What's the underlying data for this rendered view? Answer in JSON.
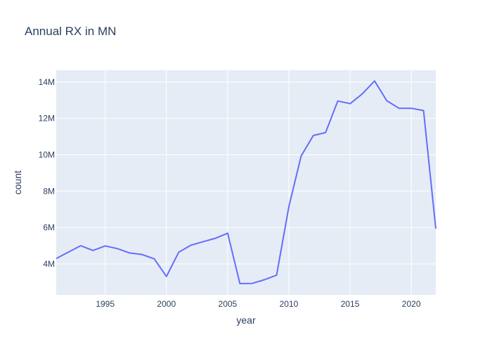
{
  "chart_data": {
    "type": "line",
    "title": "Annual RX in MN",
    "xlabel": "year",
    "ylabel": "count",
    "grid": true,
    "legend": "none",
    "colors": {
      "line": "#636efa",
      "plot_bg": "#e5ecf6",
      "grid": "#ffffff",
      "text": "#2a3f5f"
    },
    "xlim": [
      1991,
      2022
    ],
    "ylim": [
      2300000,
      14650000
    ],
    "xticks": [
      1995,
      2000,
      2005,
      2010,
      2015,
      2020
    ],
    "xtick_labels": [
      "1995",
      "2000",
      "2005",
      "2010",
      "2015",
      "2020"
    ],
    "yticks": [
      4000000,
      6000000,
      8000000,
      10000000,
      12000000,
      14000000
    ],
    "ytick_labels": [
      "4M",
      "6M",
      "8M",
      "10M",
      "12M",
      "14M"
    ],
    "series": [
      {
        "x": [
          1991,
          1992,
          1993,
          1994,
          1995,
          1996,
          1997,
          1998,
          1999,
          2000,
          2001,
          2002,
          2003,
          2004,
          2005,
          2006,
          2007,
          2008,
          2009,
          2010,
          2011,
          2012,
          2013,
          2014,
          2015,
          2016,
          2017,
          2018,
          2019,
          2020,
          2021,
          2022
        ],
        "values": [
          4300000,
          4650000,
          5000000,
          4740000,
          4990000,
          4840000,
          4600000,
          4520000,
          4280000,
          3310000,
          4640000,
          5030000,
          5220000,
          5410000,
          5690000,
          2920000,
          2930000,
          3130000,
          3380000,
          7150000,
          9930000,
          11060000,
          11220000,
          12960000,
          12810000,
          13350000,
          14060000,
          12970000,
          12560000,
          12560000,
          12430000,
          5940000
        ]
      }
    ]
  }
}
